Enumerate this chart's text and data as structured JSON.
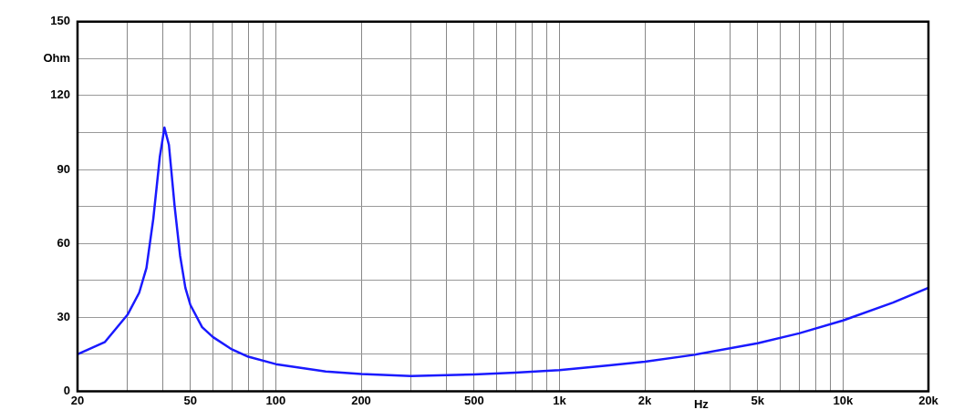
{
  "chart_data": {
    "type": "line",
    "xlabel": "Hz",
    "ylabel": "Ohm",
    "log": "x",
    "grid": true,
    "legend": false,
    "marker": "none",
    "line_style": "solid",
    "xlim": [
      20,
      20000
    ],
    "ylim": [
      0,
      150
    ],
    "xticks": [
      20,
      {
        "value": 30,
        "label": null
      },
      {
        "value": 40,
        "label": null
      },
      50,
      {
        "value": 60,
        "label": null
      },
      {
        "value": 70,
        "label": null
      },
      {
        "value": 80,
        "label": null
      },
      {
        "value": 90,
        "label": null
      },
      100,
      200,
      {
        "value": 300,
        "label": null
      },
      {
        "value": 400,
        "label": null
      },
      500,
      {
        "value": 600,
        "label": null
      },
      {
        "value": 700,
        "label": null
      },
      {
        "value": 800,
        "label": null
      },
      {
        "value": 900,
        "label": null
      },
      {
        "value": 1000,
        "label": "1k"
      },
      {
        "value": 2000,
        "label": "2k"
      },
      {
        "value": 3000,
        "label": null
      },
      {
        "value": 4000,
        "label": null
      },
      {
        "value": 5000,
        "label": "5k"
      },
      {
        "value": 6000,
        "label": null
      },
      {
        "value": 7000,
        "label": null
      },
      {
        "value": 8000,
        "label": null
      },
      {
        "value": 9000,
        "label": null
      },
      {
        "value": 10000,
        "label": "10k"
      },
      {
        "value": 20000,
        "label": "20k"
      }
    ],
    "yticks": [
      0,
      {
        "value": 15,
        "label": null
      },
      30,
      {
        "value": 45,
        "label": null
      },
      60,
      {
        "value": 75,
        "label": null
      },
      90,
      {
        "value": 105,
        "label": null
      },
      120,
      {
        "value": 135,
        "label": null
      },
      150
    ],
    "x": [
      20,
      25,
      30,
      33,
      35,
      37,
      39,
      40.5,
      42,
      44,
      46,
      48,
      50,
      55,
      60,
      70,
      80,
      100,
      150,
      200,
      300,
      500,
      700,
      1000,
      1500,
      2000,
      3000,
      5000,
      7000,
      10000,
      15000,
      20000
    ],
    "series": [
      {
        "color": "#1a1aff",
        "values": [
          15,
          20,
          31,
          40,
          50,
          70,
          95,
          107,
          100,
          75,
          55,
          42,
          35,
          26,
          22,
          17,
          14,
          11,
          8,
          7,
          6.2,
          6.8,
          7.5,
          8.6,
          10.5,
          12,
          14.8,
          19.5,
          23.5,
          28.7,
          36,
          42
        ]
      }
    ]
  }
}
